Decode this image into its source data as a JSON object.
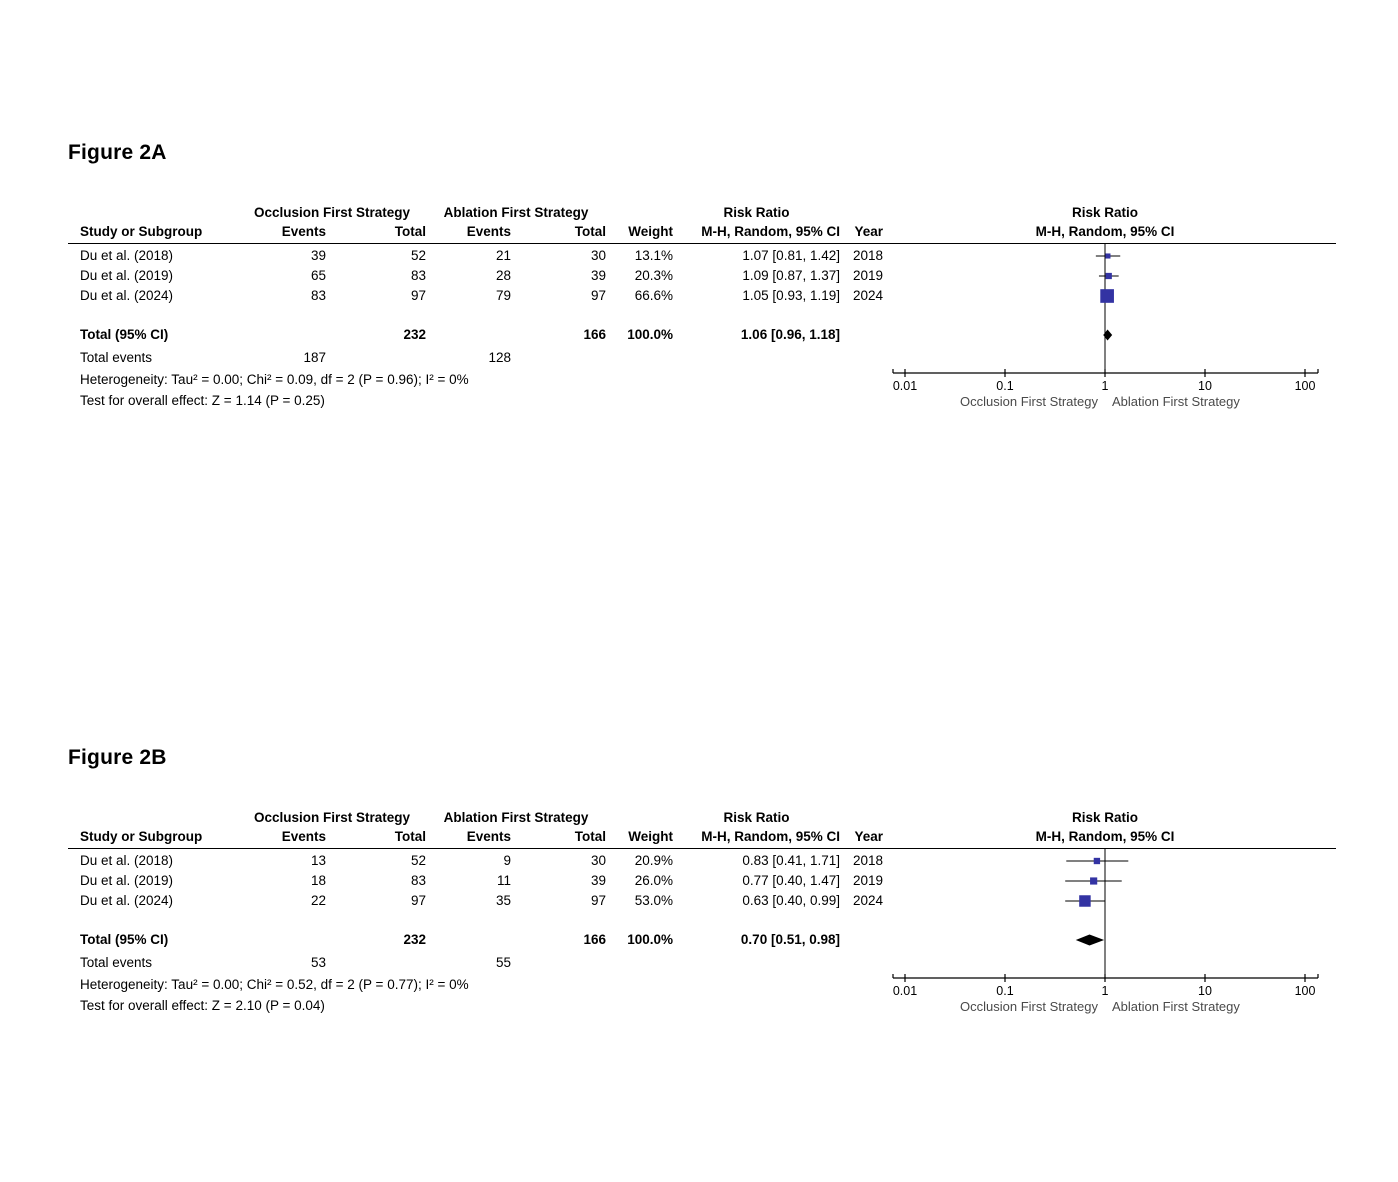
{
  "page": {
    "background": "#ffffff"
  },
  "figures": [
    {
      "label": "Figure 2A",
      "columns": {
        "study": "Study or Subgroup",
        "group1": "Occlusion First Strategy",
        "group2": "Ablation First Strategy",
        "events": "Events",
        "total": "Total",
        "weight": "Weight",
        "effect": "Risk Ratio",
        "method": "M-H, Random, 95% CI",
        "year": "Year"
      },
      "plot_header": {
        "title": "Risk Ratio",
        "subtitle": "M-H, Random, 95% CI"
      },
      "rows": [
        {
          "study": "Du et al. (2018)",
          "e1": "39",
          "t1": "52",
          "e2": "21",
          "t2": "30",
          "weight": "13.1%",
          "ci": "1.07 [0.81, 1.42]",
          "year": "2018"
        },
        {
          "study": "Du et al. (2019)",
          "e1": "65",
          "t1": "83",
          "e2": "28",
          "t2": "39",
          "weight": "20.3%",
          "ci": "1.09 [0.87, 1.37]",
          "year": "2019"
        },
        {
          "study": "Du et al. (2024)",
          "e1": "83",
          "t1": "97",
          "e2": "79",
          "t2": "97",
          "weight": "66.6%",
          "ci": "1.05 [0.93, 1.19]",
          "year": "2024"
        }
      ],
      "total": {
        "label": "Total (95% CI)",
        "t1": "232",
        "t2": "166",
        "weight": "100.0%",
        "ci": "1.06 [0.96, 1.18]"
      },
      "total_events": {
        "label": "Total events",
        "e1": "187",
        "e2": "128"
      },
      "heterogeneity": "Heterogeneity: Tau² = 0.00; Chi² = 0.09, df = 2 (P = 0.96); I² = 0%",
      "overall_effect": "Test for overall effect: Z = 1.14 (P = 0.25)"
    },
    {
      "label": "Figure 2B",
      "columns": {
        "study": "Study or Subgroup",
        "group1": "Occlusion First Strategy",
        "group2": "Ablation First Strategy",
        "events": "Events",
        "total": "Total",
        "weight": "Weight",
        "effect": "Risk Ratio",
        "method": "M-H, Random, 95% CI",
        "year": "Year"
      },
      "plot_header": {
        "title": "Risk Ratio",
        "subtitle": "M-H, Random, 95% CI"
      },
      "rows": [
        {
          "study": "Du et al. (2018)",
          "e1": "13",
          "t1": "52",
          "e2": "9",
          "t2": "30",
          "weight": "20.9%",
          "ci": "0.83 [0.41, 1.71]",
          "year": "2018"
        },
        {
          "study": "Du et al. (2019)",
          "e1": "18",
          "t1": "83",
          "e2": "11",
          "t2": "39",
          "weight": "26.0%",
          "ci": "0.77 [0.40, 1.47]",
          "year": "2019"
        },
        {
          "study": "Du et al. (2024)",
          "e1": "22",
          "t1": "97",
          "e2": "35",
          "t2": "97",
          "weight": "53.0%",
          "ci": "0.63 [0.40, 0.99]",
          "year": "2024"
        }
      ],
      "total": {
        "label": "Total (95% CI)",
        "t1": "232",
        "t2": "166",
        "weight": "100.0%",
        "ci": "0.70 [0.51, 0.98]"
      },
      "total_events": {
        "label": "Total events",
        "e1": "53",
        "e2": "55"
      },
      "heterogeneity": "Heterogeneity: Tau² = 0.00; Chi² = 0.52, df = 2 (P = 0.77); I² = 0%",
      "overall_effect": "Test for overall effect: Z = 2.10 (P = 0.04)"
    }
  ],
  "chart_data": [
    {
      "type": "forest",
      "title": "Risk Ratio",
      "method": "M-H, Random, 95% CI",
      "x_scale": "log10",
      "xlim": [
        0.01,
        100
      ],
      "ticks": [
        "0.01",
        "0.1",
        "1",
        "10",
        "100"
      ],
      "marker_color": "#3333a3",
      "diamond_color": "#000000",
      "line_color": "#000000",
      "favors_color": "#4a4a4a",
      "favors_left": "Occlusion First Strategy",
      "favors_right": "Ablation First Strategy",
      "studies": [
        {
          "name": "Du et al. (2018)",
          "rr": 1.07,
          "ci_low": 0.81,
          "ci_high": 1.42,
          "weight_pct": 13.1,
          "year": 2018
        },
        {
          "name": "Du et al. (2019)",
          "rr": 1.09,
          "ci_low": 0.87,
          "ci_high": 1.37,
          "weight_pct": 20.3,
          "year": 2019
        },
        {
          "name": "Du et al. (2024)",
          "rr": 1.05,
          "ci_low": 0.93,
          "ci_high": 1.19,
          "weight_pct": 66.6,
          "year": 2024
        }
      ],
      "pooled": {
        "rr": 1.06,
        "ci_low": 0.96,
        "ci_high": 1.18,
        "weight_pct": 100.0
      }
    },
    {
      "type": "forest",
      "title": "Risk Ratio",
      "method": "M-H, Random, 95% CI",
      "x_scale": "log10",
      "xlim": [
        0.01,
        100
      ],
      "ticks": [
        "0.01",
        "0.1",
        "1",
        "10",
        "100"
      ],
      "marker_color": "#3333a3",
      "diamond_color": "#000000",
      "line_color": "#000000",
      "favors_color": "#4a4a4a",
      "favors_left": "Occlusion First Strategy",
      "favors_right": "Ablation First Strategy",
      "studies": [
        {
          "name": "Du et al. (2018)",
          "rr": 0.83,
          "ci_low": 0.41,
          "ci_high": 1.71,
          "weight_pct": 20.9,
          "year": 2018
        },
        {
          "name": "Du et al. (2019)",
          "rr": 0.77,
          "ci_low": 0.4,
          "ci_high": 1.47,
          "weight_pct": 26.0,
          "year": 2019
        },
        {
          "name": "Du et al. (2024)",
          "rr": 0.63,
          "ci_low": 0.4,
          "ci_high": 0.99,
          "weight_pct": 53.0,
          "year": 2024
        }
      ],
      "pooled": {
        "rr": 0.7,
        "ci_low": 0.51,
        "ci_high": 0.98,
        "weight_pct": 100.0
      }
    }
  ]
}
